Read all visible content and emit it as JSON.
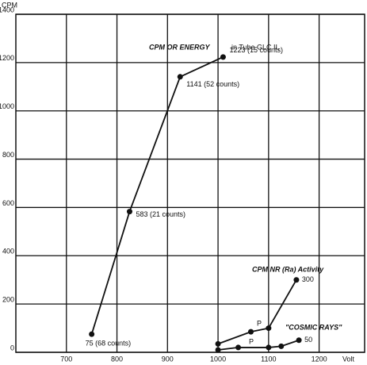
{
  "chart_data": {
    "type": "line",
    "y_label": "CPM",
    "x_label": "Volt",
    "xlim": [
      600,
      1290
    ],
    "xticks": [
      700,
      800,
      900,
      1000,
      1100,
      1200
    ],
    "ylim": [
      0,
      1400
    ],
    "yticks": [
      0,
      200,
      400,
      600,
      800,
      1000,
      1200,
      1400
    ],
    "grid": true,
    "annotations": [
      "in Tube GLC II,",
      "P",
      "P"
    ],
    "series": [
      {
        "name": "CPM OR ENERGY",
        "color": "#111111",
        "x": [
          750,
          825,
          925,
          1010
        ],
        "values": [
          75,
          583,
          1141,
          1223
        ],
        "value_labels": [
          "75 (68 counts)",
          "583 (21 counts)",
          "1141 (52 counts)",
          "1223 (15 counts)"
        ]
      },
      {
        "name": "CPM NR (Ra) Activity",
        "color": "#111111",
        "x": [
          1000,
          1065,
          1100,
          1155
        ],
        "values": [
          35,
          85,
          100,
          300
        ],
        "value_labels": [
          null,
          null,
          null,
          "300"
        ]
      },
      {
        "name": "\"COSMIC RAYS\"",
        "color": "#111111",
        "x": [
          1000,
          1040,
          1100,
          1125,
          1160
        ],
        "values": [
          10,
          20,
          20,
          25,
          50
        ],
        "value_labels": [
          null,
          null,
          null,
          null,
          "50"
        ]
      }
    ]
  }
}
